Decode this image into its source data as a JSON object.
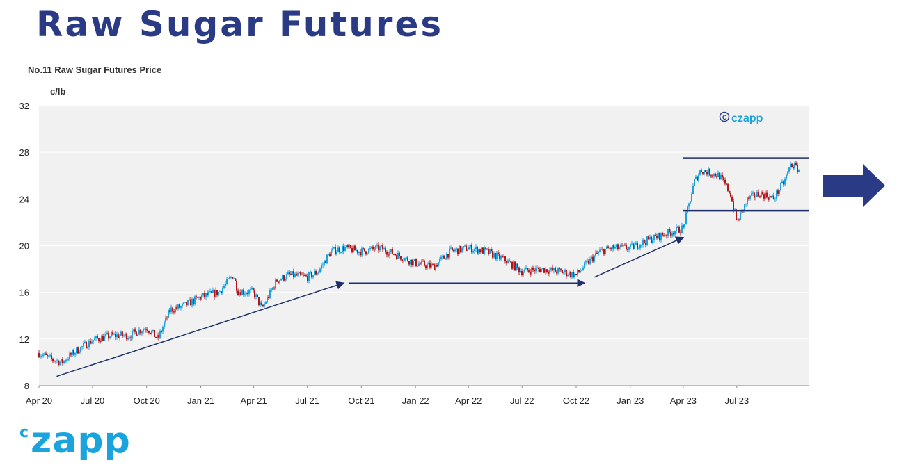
{
  "header": {
    "title": "Raw Sugar Futures"
  },
  "chart_data": {
    "type": "line",
    "title": "No.11 Raw Sugar Futures Price",
    "ylabel": "c/lb",
    "ylim": [
      8,
      32
    ],
    "yticks": [
      "8",
      "12",
      "16",
      "20",
      "24",
      "28",
      "32"
    ],
    "xticks": [
      "Apr 20",
      "Jul 20",
      "Oct 20",
      "Jan 21",
      "Apr 21",
      "Jul 21",
      "Oct 21",
      "Jan 22",
      "Apr 22",
      "Jul 22",
      "Oct 22",
      "Jan 23",
      "Apr 23",
      "Jul 23"
    ],
    "x": [
      "2020-04-01",
      "2020-04-20",
      "2020-05-10",
      "2020-06-01",
      "2020-07-01",
      "2020-08-01",
      "2020-09-01",
      "2020-10-01",
      "2020-10-20",
      "2020-11-10",
      "2020-12-01",
      "2021-01-01",
      "2021-02-01",
      "2021-02-25",
      "2021-03-05",
      "2021-04-01",
      "2021-04-15",
      "2021-05-10",
      "2021-06-01",
      "2021-07-01",
      "2021-07-20",
      "2021-08-10",
      "2021-09-01",
      "2021-10-01",
      "2021-11-01",
      "2021-12-01",
      "2022-01-01",
      "2022-02-01",
      "2022-03-01",
      "2022-04-01",
      "2022-05-01",
      "2022-06-01",
      "2022-07-01",
      "2022-08-01",
      "2022-09-01",
      "2022-10-01",
      "2022-10-20",
      "2022-11-10",
      "2022-12-01",
      "2023-01-01",
      "2023-02-01",
      "2023-03-01",
      "2023-04-01",
      "2023-04-20",
      "2023-05-01",
      "2023-06-01",
      "2023-06-20",
      "2023-07-01",
      "2023-07-20",
      "2023-08-10",
      "2023-09-01",
      "2023-09-20",
      "2023-10-01",
      "2023-10-15"
    ],
    "series": [
      {
        "values": [
          10.8,
          10.3,
          10.0,
          10.9,
          11.9,
          12.3,
          12.3,
          13.0,
          12.0,
          14.5,
          14.8,
          15.6,
          16.0,
          17.5,
          16.1,
          16.0,
          14.6,
          17.0,
          17.5,
          17.3,
          17.8,
          19.5,
          19.8,
          19.5,
          19.8,
          19.2,
          18.5,
          18.2,
          19.5,
          19.8,
          19.5,
          18.8,
          17.8,
          18.0,
          17.8,
          17.5,
          18.5,
          19.5,
          19.8,
          19.8,
          20.5,
          21.0,
          21.5,
          25.5,
          26.5,
          26.0,
          24.5,
          22.0,
          24.0,
          24.5,
          24.0,
          25.5,
          27.0,
          26.5
        ]
      }
    ],
    "annotations": {
      "trend_arrows": [
        {
          "from": [
            "2020-05-01",
            8.8
          ],
          "to": [
            "2021-09-01",
            16.8
          ]
        },
        {
          "from": [
            "2021-09-10",
            16.8
          ],
          "to": [
            "2022-10-15",
            16.8
          ]
        },
        {
          "from": [
            "2022-11-01",
            17.3
          ],
          "to": [
            "2023-04-01",
            20.7
          ]
        }
      ],
      "range_lines": [
        {
          "from": "2023-04-01",
          "to": "2023-10-31",
          "y": 27.5
        },
        {
          "from": "2023-04-01",
          "to": "2023-10-31",
          "y": 23.0
        }
      ]
    },
    "colors": {
      "up": "#1aa3dd",
      "down": "#b0161b",
      "annotation": "#1f2f6e",
      "plot_bg": "#f1f1f1",
      "big_arrow": "#2b3a85"
    }
  },
  "watermark": {
    "text": "czapp"
  },
  "footer": {
    "brand_sup": "c",
    "brand": "zapp"
  }
}
